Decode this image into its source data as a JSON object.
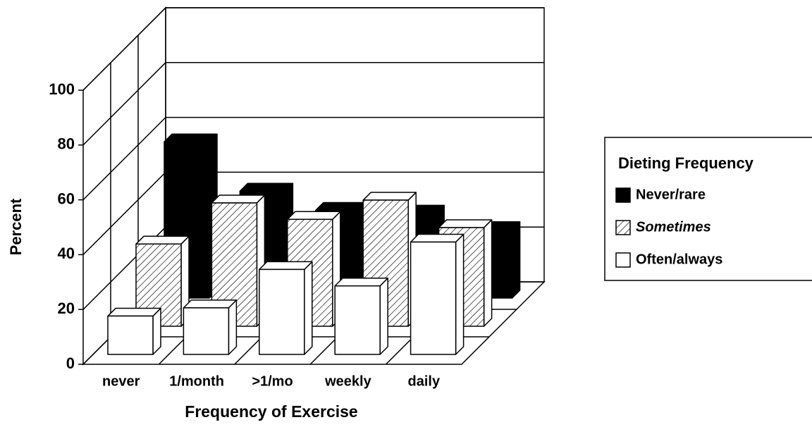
{
  "chart_data": {
    "type": "bar3d",
    "x_label": "Frequency of Exercise",
    "y_label": "Percent",
    "legend_title": "Dieting Frequency",
    "legend": "right",
    "categories": [
      "never",
      "1/month",
      ">1/mo",
      "weekly",
      "daily"
    ],
    "series": [
      {
        "name": "Never/rare",
        "color": "#000000",
        "hatch": false,
        "values": [
          57,
          39,
          32,
          31,
          25
        ]
      },
      {
        "name": "Sometimes",
        "color": "#ffffff",
        "hatch": true,
        "values": [
          30,
          45,
          39,
          46,
          36
        ]
      },
      {
        "name": "Often/always",
        "color": "#ffffff",
        "hatch": false,
        "values": [
          14,
          17,
          31,
          25,
          41
        ]
      }
    ],
    "ylim": [
      0,
      100
    ],
    "yticks": [
      0,
      20,
      40,
      60,
      80,
      100
    ],
    "grid": true
  }
}
